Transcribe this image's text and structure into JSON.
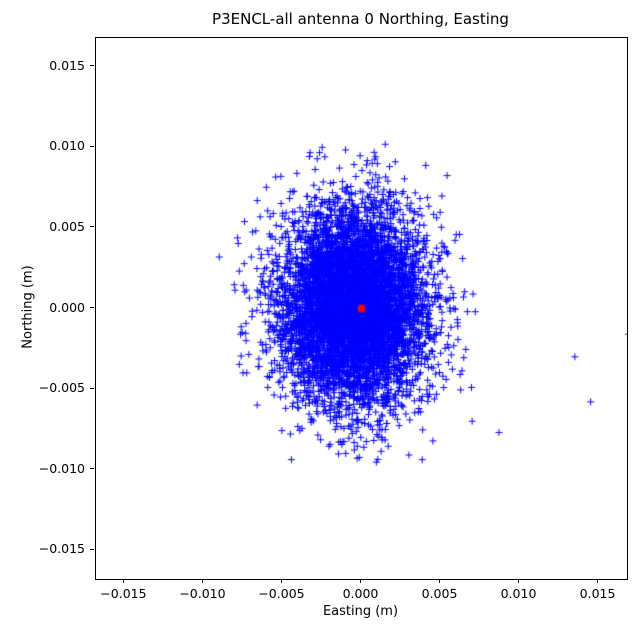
{
  "figure": {
    "kind": "matplotlib-scatter-figure"
  },
  "chart_data": {
    "type": "scatter",
    "title": "P3ENCL-all antenna 0 Northing, Easting",
    "xlabel": "Easting (m)",
    "ylabel": "Northing (m)",
    "xlim": [
      -0.0168,
      0.0168
    ],
    "ylim": [
      -0.0168,
      0.0168
    ],
    "xticks": [
      -0.015,
      -0.01,
      -0.005,
      0.0,
      0.005,
      0.01,
      0.015
    ],
    "yticks": [
      -0.015,
      -0.01,
      -0.005,
      0.0,
      0.005,
      0.01,
      0.015
    ],
    "grid": false,
    "legend": "none",
    "series": [
      {
        "name": "antenna-0-position-solutions",
        "marker": "+",
        "color": "#0000ff",
        "distribution": {
          "kind": "gaussian-cluster",
          "center": [
            -0.0005,
            0.0002
          ],
          "sigma": [
            0.0023,
            0.003
          ],
          "count": 7000,
          "clip_sigma": 3.3,
          "seed": 7
        },
        "outliers": [
          [
            -0.009,
            0.0032
          ],
          [
            0.007,
            -0.007
          ],
          [
            0.0087,
            -0.0077
          ],
          [
            0.0135,
            -0.003
          ],
          [
            0.0145,
            -0.0058
          ],
          [
            0.0169,
            -0.0016
          ],
          [
            0.0072,
            -0.0002
          ],
          [
            0.0015,
            0.0102
          ],
          [
            0.0008,
            0.0097
          ],
          [
            -0.0028,
            0.0093
          ],
          [
            0.003,
            -0.0091
          ],
          [
            -0.0066,
            0.0067
          ],
          [
            -0.0074,
            0.0054
          ],
          [
            0.0062,
            0.0046
          ],
          [
            0.0064,
            0.0031
          ],
          [
            -0.0075,
            -0.004
          ],
          [
            -0.0066,
            -0.006
          ],
          [
            -0.001,
            -0.009
          ],
          [
            -0.0045,
            -0.0078
          ]
        ]
      },
      {
        "name": "reference-position",
        "marker": "o",
        "color": "#ff0000",
        "marker_radius_px": 4,
        "points": [
          [
            0.0,
            0.0
          ]
        ]
      }
    ]
  }
}
